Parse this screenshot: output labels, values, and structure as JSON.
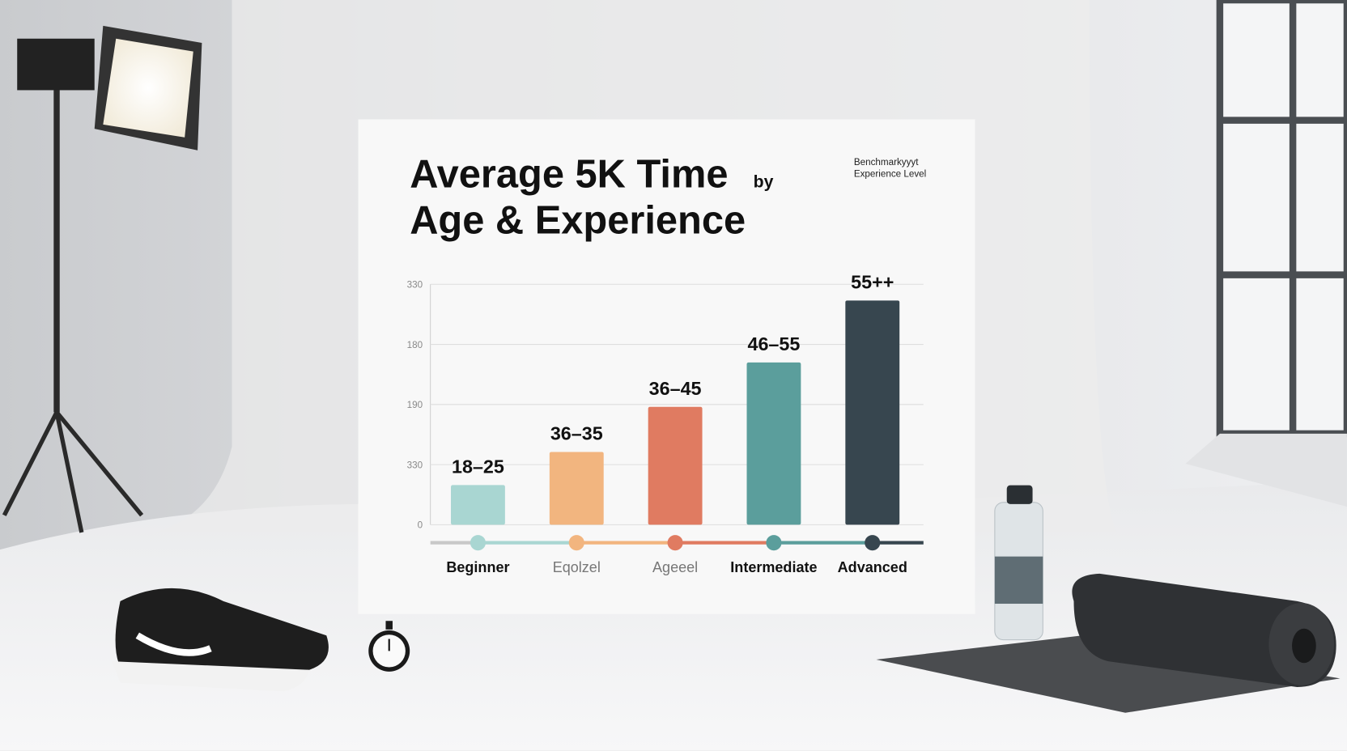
{
  "chart_data": {
    "type": "bar",
    "title": [
      "Average 5K Time",
      "by",
      "Age & Experience"
    ],
    "subtitle": [
      "Benchmarkyyyt",
      "Experience Level"
    ],
    "categories": [
      "Beginner",
      "Eqolzel",
      "Ageeel",
      "Intermediate",
      "Advanced"
    ],
    "category_colors": [
      "#111111",
      "#777777",
      "#777777",
      "#111111",
      "#111111"
    ],
    "bar_labels": [
      "18–25",
      "36–35",
      "36–45",
      "46–55",
      "55++"
    ],
    "values": [
      66,
      121,
      196,
      270,
      373
    ],
    "colors": [
      "#a9d6d2",
      "#f2b57f",
      "#e07b61",
      "#5b9e9c",
      "#37464f"
    ],
    "ylim": [
      0,
      400
    ],
    "yticks": [
      0,
      {
        "value": 100,
        "label": "330"
      },
      {
        "value": 200,
        "label": "190"
      },
      {
        "value": 300,
        "label": "180"
      },
      {
        "value": 400,
        "label": "330"
      }
    ],
    "grid": true
  }
}
